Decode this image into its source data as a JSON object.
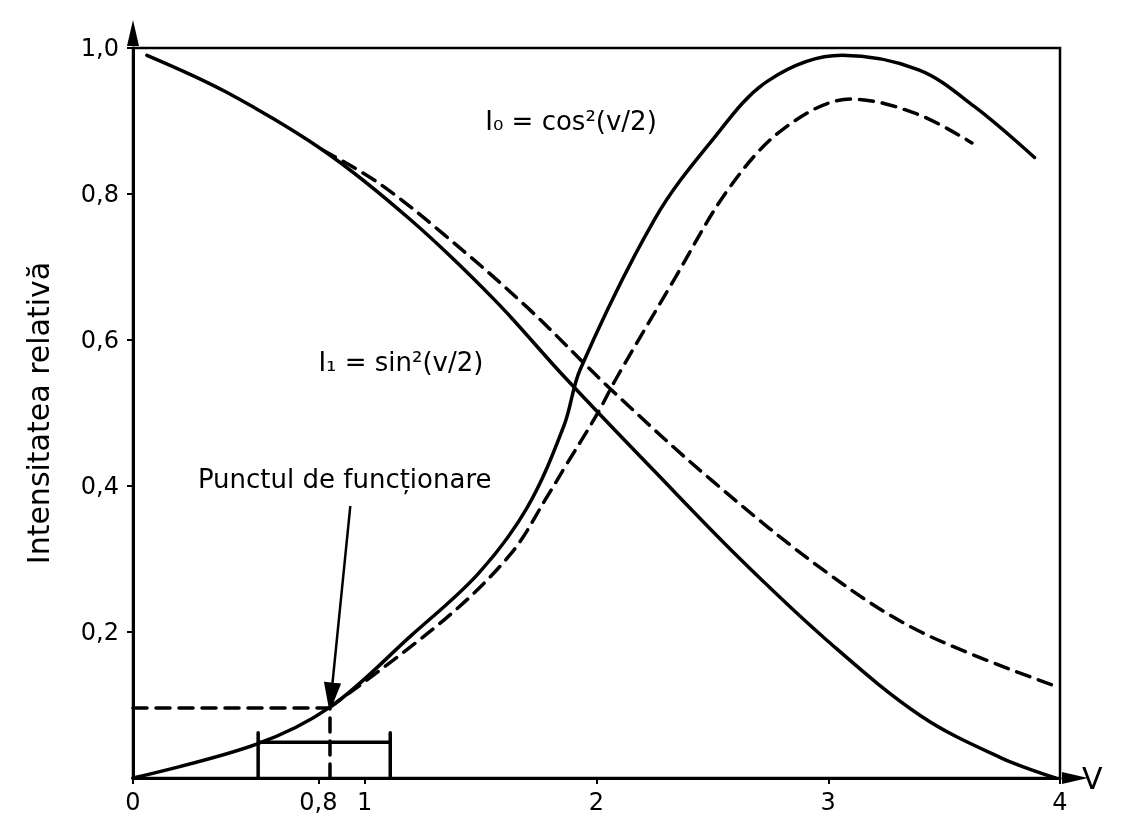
{
  "chart_data": {
    "type": "line",
    "xlabel": "V",
    "ylabel": "Intensitatea relativă",
    "xlim": [
      0,
      4
    ],
    "ylim": [
      0,
      1
    ],
    "xticks": [
      0,
      {
        "value": 0.8,
        "label": "0,8"
      },
      1,
      2,
      3,
      4
    ],
    "yticks": [
      {
        "value": 0.2,
        "label": "0,2"
      },
      {
        "value": 0.4,
        "label": "0,4"
      },
      {
        "value": 0.6,
        "label": "0,6"
      },
      {
        "value": 0.8,
        "label": "0,8"
      },
      {
        "value": 1.0,
        "label": "1,0"
      }
    ],
    "grid": false,
    "marker": "none",
    "annotations": [
      "I₀ = cos²(v/2)",
      "I₁ = sin²(v/2)",
      "Punctul de funcționare"
    ],
    "series": [
      {
        "color": "#000000",
        "line_style": "solid",
        "x": [
          0.06,
          0.4,
          0.82,
          1.2,
          1.56,
          1.86,
          2.26,
          2.62,
          3.0,
          3.4,
          3.75,
          3.98
        ],
        "values": [
          0.99,
          0.94,
          0.86,
          0.764,
          0.655,
          0.55,
          0.417,
          0.3,
          0.187,
          0.085,
          0.027,
          0
        ]
      },
      {
        "color": "#000000",
        "line_style": "dashed",
        "x": [
          0.82,
          1.06,
          1.34,
          1.7,
          2.06,
          2.5,
          3.0,
          3.4,
          3.98
        ],
        "values": [
          0.86,
          0.815,
          0.745,
          0.645,
          0.533,
          0.407,
          0.28,
          0.2,
          0.126
        ]
      },
      {
        "color": "#000000",
        "line_style": "solid",
        "x": [
          0,
          0.53,
          0.85,
          1.2,
          1.49,
          1.7,
          1.86,
          1.93,
          2.25,
          2.49,
          2.74,
          3.06,
          3.39,
          3.63,
          3.89
        ],
        "values": [
          0,
          0.046,
          0.097,
          0.195,
          0.28,
          0.37,
          0.483,
          0.56,
          0.765,
          0.87,
          0.955,
          0.99,
          0.97,
          0.92,
          0.85
        ]
      },
      {
        "color": "#000000",
        "line_style": "dashed",
        "x": [
          0.85,
          1.34,
          1.63,
          1.79,
          1.86,
          2.0,
          2.09,
          2.33,
          2.57,
          2.81,
          3.1,
          3.38,
          3.62
        ],
        "values": [
          0.097,
          0.216,
          0.307,
          0.387,
          0.424,
          0.497,
          0.55,
          0.68,
          0.807,
          0.89,
          0.93,
          0.91,
          0.87
        ]
      },
      {
        "color": "#000000",
        "line_style": "dashed",
        "x": [
          0,
          0.85,
          0.85
        ],
        "values": [
          0.096,
          0.096,
          0
        ]
      },
      {
        "color": "#000000",
        "line_style": "solid",
        "x": [
          0.54,
          0.54,
          0.54,
          1.11,
          1.11,
          1.11
        ],
        "values": [
          0,
          0.062,
          0.049,
          0.049,
          0.062,
          0
        ]
      }
    ]
  }
}
